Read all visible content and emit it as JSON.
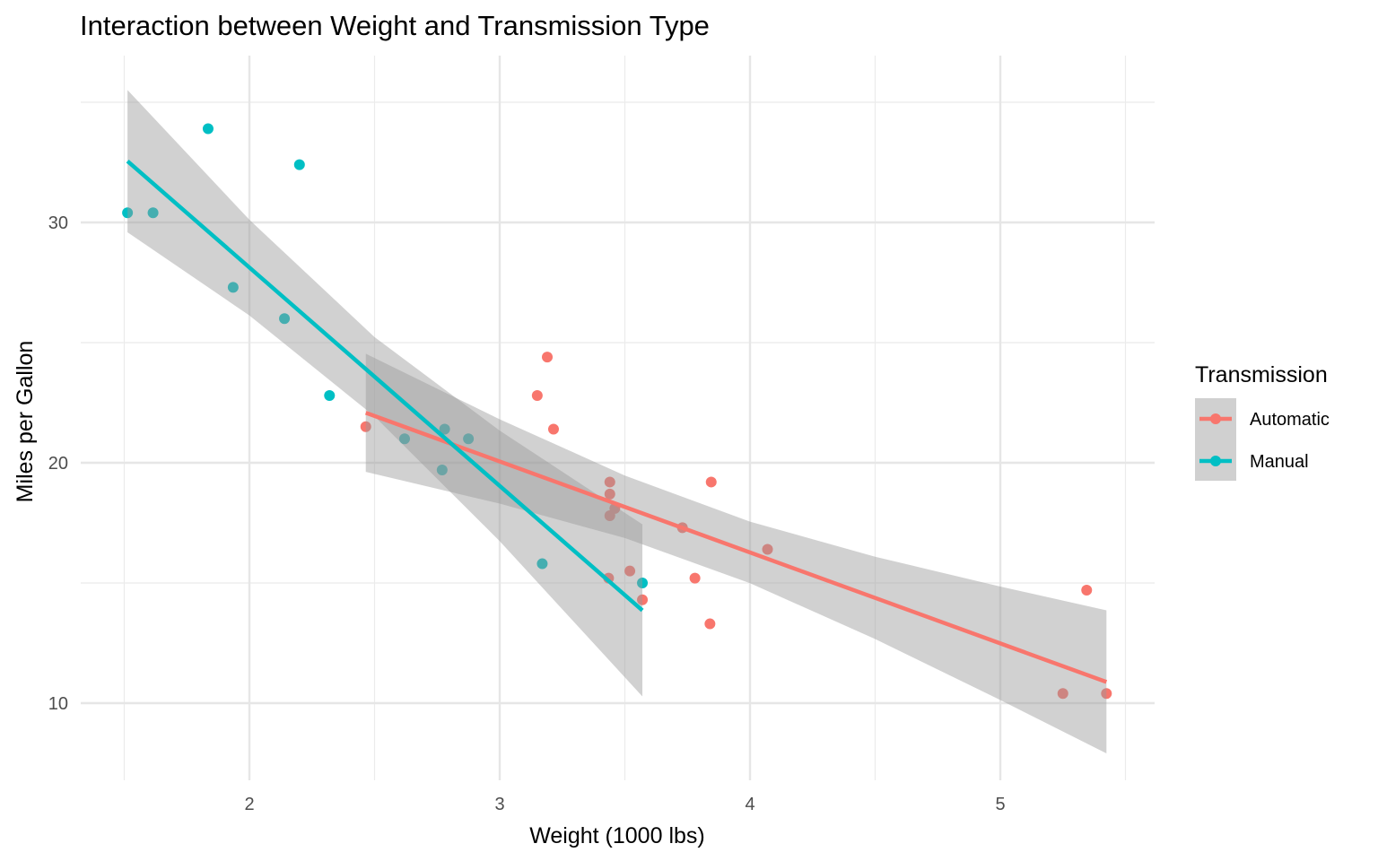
{
  "chart_data": {
    "type": "scatter",
    "title": "Interaction between Weight and Transmission Type",
    "xlabel": "Weight (1000 lbs)",
    "ylabel": "Miles per Gallon",
    "xlim": [
      1.32,
      5.62
    ],
    "ylim": [
      6.6,
      36.9
    ],
    "x_ticks": [
      2,
      3,
      4,
      5
    ],
    "x_tick_labels": [
      "2",
      "3",
      "4",
      "5"
    ],
    "x_minor": [
      1.5,
      2.5,
      3.5,
      4.5,
      5.5
    ],
    "y_ticks": [
      10,
      20,
      30
    ],
    "y_tick_labels": [
      "10",
      "20",
      "30"
    ],
    "y_minor": [
      15,
      25,
      35
    ],
    "grid": true,
    "legend": {
      "title": "Transmission",
      "placement": "right",
      "entries": [
        "Automatic",
        "Manual"
      ]
    },
    "series": [
      {
        "name": "Automatic",
        "color": "#F8766D",
        "points": [
          [
            3.215,
            21.4
          ],
          [
            3.44,
            18.7
          ],
          [
            3.46,
            18.1
          ],
          [
            3.57,
            14.3
          ],
          [
            3.19,
            24.4
          ],
          [
            3.15,
            22.8
          ],
          [
            3.44,
            19.2
          ],
          [
            3.44,
            17.8
          ],
          [
            4.07,
            16.4
          ],
          [
            3.73,
            17.3
          ],
          [
            3.78,
            15.2
          ],
          [
            5.25,
            10.4
          ],
          [
            5.424,
            10.4
          ],
          [
            5.345,
            14.7
          ],
          [
            2.465,
            21.5
          ],
          [
            3.52,
            15.5
          ],
          [
            3.435,
            15.2
          ],
          [
            3.84,
            13.3
          ],
          [
            3.845,
            19.2
          ]
        ],
        "fit": {
          "x": [
            2.465,
            5.424
          ],
          "y": [
            22.08,
            10.88
          ]
        },
        "band": {
          "x": [
            2.465,
            3.0,
            3.5,
            4.0,
            4.5,
            5.0,
            5.424
          ],
          "lower": [
            19.62,
            18.3,
            16.87,
            14.99,
            12.67,
            10.13,
            7.91
          ],
          "upper": [
            24.54,
            21.81,
            19.47,
            17.55,
            16.09,
            14.85,
            13.86
          ]
        }
      },
      {
        "name": "Manual",
        "color": "#00BFC4",
        "points": [
          [
            2.62,
            21.0
          ],
          [
            2.875,
            21.0
          ],
          [
            2.32,
            22.8
          ],
          [
            2.2,
            32.4
          ],
          [
            1.615,
            30.4
          ],
          [
            1.835,
            33.9
          ],
          [
            1.935,
            27.3
          ],
          [
            2.14,
            26.0
          ],
          [
            1.513,
            30.4
          ],
          [
            3.17,
            15.8
          ],
          [
            2.77,
            19.7
          ],
          [
            3.57,
            15.0
          ],
          [
            2.78,
            21.4
          ]
        ],
        "fit": {
          "x": [
            1.513,
            3.57
          ],
          "y": [
            32.55,
            13.86
          ]
        },
        "band": {
          "x": [
            1.513,
            2.0,
            2.5,
            3.0,
            3.57
          ],
          "lower": [
            29.59,
            26.13,
            21.93,
            16.74,
            10.28
          ],
          "upper": [
            35.51,
            30.11,
            25.23,
            21.34,
            17.44
          ]
        }
      }
    ]
  }
}
